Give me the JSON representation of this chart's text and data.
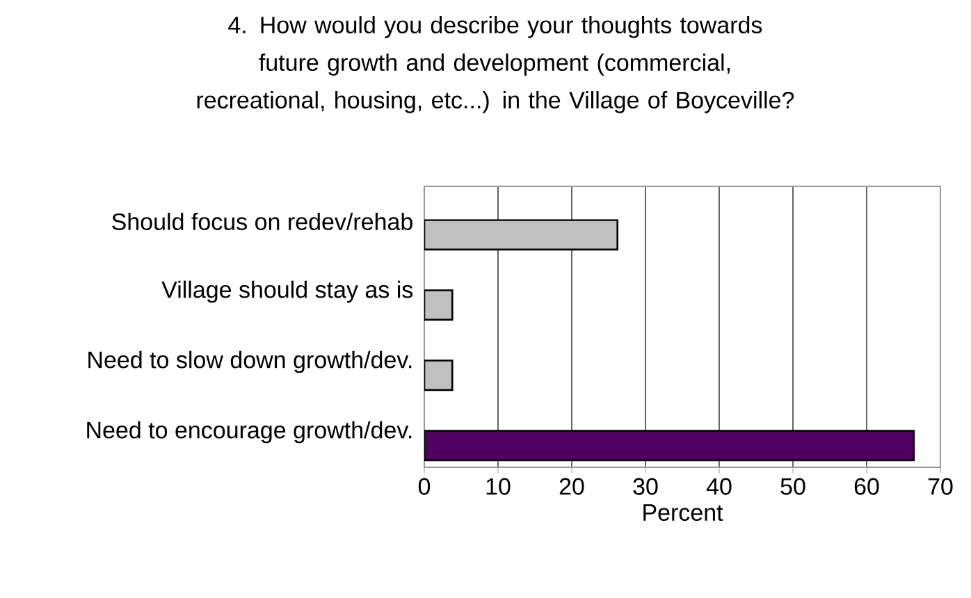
{
  "chart_data": {
    "type": "bar",
    "orientation": "horizontal",
    "title": "4.  How would you describe your thoughts towards future growth and development (commercial, recreational, housing, etc...) in the Village of Boyceville?",
    "categories": [
      "Should focus on redev/rehab",
      "Village should stay as is",
      "Need to slow down growth/dev.",
      "Need to encourage growth/dev."
    ],
    "values": [
      26.2,
      3.8,
      3.8,
      66.4
    ],
    "colors": [
      "#c0c0c0",
      "#c0c0c0",
      "#c0c0c0",
      "#4f0060"
    ],
    "xlabel": "Percent",
    "xlim": [
      0,
      70
    ],
    "xticks": [
      0,
      10,
      20,
      30,
      40,
      50,
      60,
      70
    ],
    "grid": "x"
  }
}
